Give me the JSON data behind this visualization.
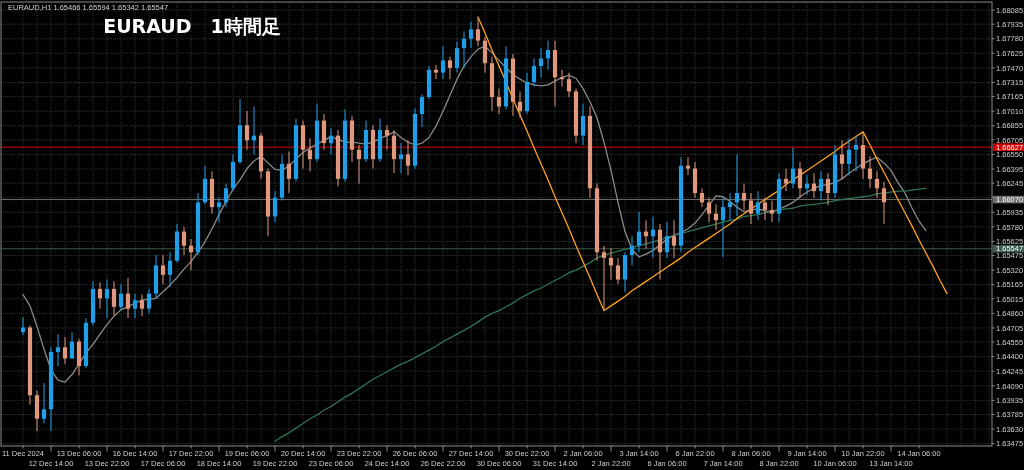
{
  "chart_data": {
    "type": "candlestick",
    "title": "EURAUD　1時間足",
    "subtitle": "EURAUD,H1 1.65466 1.65594 1.65342 1.65547",
    "categories": [
      "11 Dec 2024",
      null,
      null,
      null,
      "12 Dec 14:00",
      null,
      null,
      null,
      "13 Dec 06:00",
      null,
      null,
      null,
      "13 Dec 22:00",
      null,
      null,
      null,
      "16 Dec 14:00",
      null,
      null,
      null,
      "17 Dec 06:00",
      null,
      null,
      null,
      "17 Dec 22:00",
      null,
      null,
      null,
      "18 Dec 14:00",
      null,
      null,
      null,
      "19 Dec 06:00",
      null,
      null,
      null,
      "19 Dec 22:00",
      null,
      null,
      null,
      "20 Dec 14:00",
      null,
      null,
      null,
      "23 Dec 06:00",
      null,
      null,
      null,
      "23 Dec 22:00",
      null,
      null,
      null,
      "24 Dec 14:00",
      null,
      null,
      null,
      "26 Dec 06:00",
      null,
      null,
      null,
      "26 Dec 22:00",
      null,
      null,
      null,
      "27 Dec 14:00",
      null,
      null,
      null,
      "30 Dec 06:00",
      null,
      null,
      null,
      "30 Dec 22:00",
      null,
      null,
      null,
      "31 Dec 14:00",
      null,
      null,
      null,
      "2 Jan 06:00",
      null,
      null,
      null,
      "2 Jan 22:00",
      null,
      null,
      null,
      "3 Jan 14:00",
      null,
      null,
      null,
      "6 Jan 06:00",
      null,
      null,
      null,
      "6 Jan 22:00",
      null,
      null,
      null,
      "7 Jan 14:00",
      null,
      null,
      null,
      "8 Jan 06:00",
      null,
      null,
      null,
      "8 Jan 22:00",
      null,
      null,
      null,
      "9 Jan 14:00",
      null,
      null,
      null,
      "10 Jan 06:00",
      null,
      null,
      null,
      "10 Jan 22:00",
      null,
      null,
      null,
      "13 Jan 14:00",
      null,
      null,
      null,
      "14 Jan 06:00",
      null,
      null,
      null,
      null,
      null,
      null,
      null,
      null,
      null,
      null
    ],
    "ohlc": [
      [
        1.6466,
        1.6482,
        1.6463,
        1.6471
      ],
      [
        1.6471,
        1.6473,
        1.6389,
        1.6399
      ],
      [
        1.6399,
        1.6404,
        1.6361,
        1.6374
      ],
      [
        1.6374,
        1.6412,
        1.6369,
        1.6384
      ],
      [
        1.6384,
        1.645,
        1.6361,
        1.6445
      ],
      [
        1.6445,
        1.6464,
        1.643,
        1.645
      ],
      [
        1.645,
        1.6461,
        1.6432,
        1.6438
      ],
      [
        1.6438,
        1.6466,
        1.6438,
        1.6456
      ],
      [
        1.6456,
        1.6459,
        1.642,
        1.643
      ],
      [
        1.643,
        1.6481,
        1.6428,
        1.6476
      ],
      [
        1.6476,
        1.652,
        1.6473,
        1.6512
      ],
      [
        1.6512,
        1.6519,
        1.6491,
        1.6502
      ],
      [
        1.6502,
        1.6522,
        1.6481,
        1.6512
      ],
      [
        1.6512,
        1.652,
        1.6484,
        1.6493
      ],
      [
        1.6493,
        1.6517,
        1.6489,
        1.6507
      ],
      [
        1.6507,
        1.6524,
        1.6481,
        1.6491
      ],
      [
        1.6491,
        1.6507,
        1.6481,
        1.65
      ],
      [
        1.65,
        1.6506,
        1.6483,
        1.6491
      ],
      [
        1.6491,
        1.6512,
        1.6486,
        1.6507
      ],
      [
        1.6507,
        1.6548,
        1.6502,
        1.6537
      ],
      [
        1.6537,
        1.6548,
        1.6517,
        1.6527
      ],
      [
        1.6527,
        1.6551,
        1.6514,
        1.6542
      ],
      [
        1.6542,
        1.6581,
        1.654,
        1.6573
      ],
      [
        1.6573,
        1.6578,
        1.6548,
        1.6558
      ],
      [
        1.6558,
        1.6565,
        1.6532,
        1.6551
      ],
      [
        1.6551,
        1.6614,
        1.6548,
        1.6604
      ],
      [
        1.6604,
        1.6643,
        1.6602,
        1.6629
      ],
      [
        1.6629,
        1.6637,
        1.6592,
        1.6599
      ],
      [
        1.6599,
        1.6609,
        1.6583,
        1.6604
      ],
      [
        1.6604,
        1.6624,
        1.6599,
        1.6619
      ],
      [
        1.6619,
        1.6655,
        1.6616,
        1.6647
      ],
      [
        1.6647,
        1.6714,
        1.6645,
        1.6686
      ],
      [
        1.6686,
        1.6701,
        1.666,
        1.667
      ],
      [
        1.667,
        1.6706,
        1.6655,
        1.6675
      ],
      [
        1.6675,
        1.6678,
        1.6629,
        1.6637
      ],
      [
        1.6637,
        1.664,
        1.6568,
        1.6589
      ],
      [
        1.6589,
        1.6616,
        1.6583,
        1.6609
      ],
      [
        1.6609,
        1.6655,
        1.6606,
        1.6645
      ],
      [
        1.6645,
        1.6658,
        1.6614,
        1.6629
      ],
      [
        1.6629,
        1.6693,
        1.6626,
        1.6686
      ],
      [
        1.6686,
        1.6691,
        1.664,
        1.666
      ],
      [
        1.666,
        1.6672,
        1.6637,
        1.665
      ],
      [
        1.665,
        1.6709,
        1.6647,
        1.6691
      ],
      [
        1.6691,
        1.6698,
        1.666,
        1.6667
      ],
      [
        1.6667,
        1.6683,
        1.6655,
        1.6675
      ],
      [
        1.6675,
        1.6681,
        1.6621,
        1.6629
      ],
      [
        1.6629,
        1.6703,
        1.6626,
        1.6691
      ],
      [
        1.6691,
        1.6696,
        1.6647,
        1.666
      ],
      [
        1.666,
        1.6665,
        1.6624,
        1.665
      ],
      [
        1.665,
        1.6691,
        1.6647,
        1.6681
      ],
      [
        1.6681,
        1.6686,
        1.664,
        1.665
      ],
      [
        1.665,
        1.6693,
        1.6647,
        1.6681
      ],
      [
        1.6681,
        1.6686,
        1.666,
        1.6675
      ],
      [
        1.6675,
        1.6681,
        1.6635,
        1.665
      ],
      [
        1.665,
        1.6667,
        1.6635,
        1.6655
      ],
      [
        1.6655,
        1.667,
        1.6633,
        1.6643
      ],
      [
        1.6643,
        1.6704,
        1.664,
        1.6698
      ],
      [
        1.6698,
        1.6719,
        1.6684,
        1.6716
      ],
      [
        1.6716,
        1.6749,
        1.6714,
        1.6745
      ],
      [
        1.6745,
        1.675,
        1.6735,
        1.6742
      ],
      [
        1.6742,
        1.677,
        1.6735,
        1.6755
      ],
      [
        1.6755,
        1.6759,
        1.6735,
        1.6747
      ],
      [
        1.6747,
        1.6775,
        1.6742,
        1.6768
      ],
      [
        1.6768,
        1.6786,
        1.6747,
        1.6778
      ],
      [
        1.6778,
        1.6796,
        1.6768,
        1.6788
      ],
      [
        1.6788,
        1.6801,
        1.677,
        1.6776
      ],
      [
        1.6776,
        1.678,
        1.6742,
        1.6752
      ],
      [
        1.6752,
        1.6759,
        1.6701,
        1.6716
      ],
      [
        1.6716,
        1.6725,
        1.6698,
        1.6706
      ],
      [
        1.6706,
        1.677,
        1.6703,
        1.6757
      ],
      [
        1.6757,
        1.6762,
        1.6696,
        1.6711
      ],
      [
        1.6711,
        1.6722,
        1.6694,
        1.6701
      ],
      [
        1.6701,
        1.6742,
        1.6698,
        1.6732
      ],
      [
        1.6732,
        1.6757,
        1.6727,
        1.6749
      ],
      [
        1.6749,
        1.6768,
        1.6737,
        1.6757
      ],
      [
        1.6757,
        1.6776,
        1.6745,
        1.6766
      ],
      [
        1.6766,
        1.6776,
        1.6706,
        1.6737
      ],
      [
        1.6737,
        1.6745,
        1.6727,
        1.6735
      ],
      [
        1.6735,
        1.6742,
        1.6716,
        1.6722
      ],
      [
        1.6722,
        1.6725,
        1.6667,
        1.6675
      ],
      [
        1.6675,
        1.6709,
        1.6665,
        1.6696
      ],
      [
        1.6696,
        1.6706,
        1.6609,
        1.6619
      ],
      [
        1.6619,
        1.6624,
        1.6542,
        1.6551
      ],
      [
        1.6551,
        1.6558,
        1.6489,
        1.6545
      ],
      [
        1.6545,
        1.6555,
        1.6522,
        1.6537
      ],
      [
        1.6537,
        1.6545,
        1.6517,
        1.6522
      ],
      [
        1.6522,
        1.6551,
        1.6509,
        1.6548
      ],
      [
        1.6548,
        1.6568,
        1.6537,
        1.6558
      ],
      [
        1.6558,
        1.6594,
        1.6551,
        1.6573
      ],
      [
        1.6573,
        1.6585,
        1.6555,
        1.6568
      ],
      [
        1.6568,
        1.6589,
        1.6545,
        1.6575
      ],
      [
        1.6575,
        1.6581,
        1.6522,
        1.6551
      ],
      [
        1.6551,
        1.6583,
        1.6545,
        1.6568
      ],
      [
        1.6568,
        1.6585,
        1.6545,
        1.6558
      ],
      [
        1.6558,
        1.6652,
        1.6551,
        1.6643
      ],
      [
        1.6643,
        1.6652,
        1.6633,
        1.664
      ],
      [
        1.664,
        1.6647,
        1.6609,
        1.6614
      ],
      [
        1.6614,
        1.6619,
        1.6599,
        1.6604
      ],
      [
        1.6604,
        1.6609,
        1.6583,
        1.6592
      ],
      [
        1.6592,
        1.6602,
        1.6575,
        1.6585
      ],
      [
        1.6585,
        1.6609,
        1.6546,
        1.6599
      ],
      [
        1.6599,
        1.6614,
        1.6585,
        1.6604
      ],
      [
        1.6604,
        1.6655,
        1.6589,
        1.6614
      ],
      [
        1.6614,
        1.6624,
        1.6596,
        1.6606
      ],
      [
        1.6606,
        1.6614,
        1.6581,
        1.6592
      ],
      [
        1.6592,
        1.6616,
        1.6585,
        1.6604
      ],
      [
        1.6604,
        1.6609,
        1.6585,
        1.6596
      ],
      [
        1.6596,
        1.6606,
        1.6583,
        1.6592
      ],
      [
        1.6592,
        1.6635,
        1.6583,
        1.6629
      ],
      [
        1.6629,
        1.664,
        1.6616,
        1.6624
      ],
      [
        1.6624,
        1.6662,
        1.6619,
        1.664
      ],
      [
        1.664,
        1.6647,
        1.6609,
        1.6619
      ],
      [
        1.6619,
        1.6633,
        1.6612,
        1.6624
      ],
      [
        1.6624,
        1.6635,
        1.6609,
        1.6616
      ],
      [
        1.6616,
        1.6637,
        1.6606,
        1.6629
      ],
      [
        1.6629,
        1.6635,
        1.6601,
        1.6614
      ],
      [
        1.6614,
        1.6665,
        1.6609,
        1.6655
      ],
      [
        1.6655,
        1.667,
        1.6629,
        1.6645
      ],
      [
        1.6645,
        1.6672,
        1.6633,
        1.666
      ],
      [
        1.666,
        1.6675,
        1.6637,
        1.6665
      ],
      [
        1.6665,
        1.6679,
        1.6629,
        1.664
      ],
      [
        1.664,
        1.6653,
        1.6619,
        1.6629
      ],
      [
        1.6629,
        1.6637,
        1.6609,
        1.6619
      ],
      [
        1.6619,
        1.6626,
        1.6581,
        1.6604
      ],
      null,
      null,
      null,
      null,
      null,
      null,
      null,
      null,
      null,
      null,
      null,
      null,
      null,
      null,
      null
    ],
    "colors": [
      "#1e9fe8",
      "#e0997c",
      "#e0997c",
      "#1e9fe8",
      "#1e9fe8",
      "#1e9fe8",
      "#e0997c",
      "#1e9fe8",
      "#e0997c",
      "#1e9fe8",
      "#1e9fe8",
      "#e0997c",
      "#1e9fe8",
      "#e0997c",
      "#1e9fe8",
      "#e0997c",
      "#1e9fe8",
      "#e0997c",
      "#1e9fe8",
      "#1e9fe8",
      "#e0997c",
      "#1e9fe8",
      "#1e9fe8",
      "#e0997c",
      "#e0997c",
      "#1e9fe8",
      "#1e9fe8",
      "#e0997c",
      "#1e9fe8",
      "#1e9fe8",
      "#1e9fe8",
      "#1e9fe8",
      "#e0997c",
      "#1e9fe8",
      "#e0997c",
      "#e0997c",
      "#1e9fe8",
      "#1e9fe8",
      "#e0997c",
      "#1e9fe8",
      "#e0997c",
      "#e0997c",
      "#1e9fe8",
      "#e0997c",
      "#1e9fe8",
      "#e0997c",
      "#1e9fe8",
      "#e0997c",
      "#e0997c",
      "#1e9fe8",
      "#e0997c",
      "#1e9fe8",
      "#e0997c",
      "#e0997c",
      "#1e9fe8",
      "#e0997c",
      "#1e9fe8",
      "#1e9fe8",
      "#1e9fe8",
      "#e0997c",
      "#1e9fe8",
      "#e0997c",
      "#1e9fe8",
      "#1e9fe8",
      "#1e9fe8",
      "#e0997c",
      "#e0997c",
      "#e0997c",
      "#e0997c",
      "#1e9fe8",
      "#e0997c",
      "#e0997c",
      "#1e9fe8",
      "#1e9fe8",
      "#1e9fe8",
      "#1e9fe8",
      "#e0997c",
      "#e0997c",
      "#e0997c",
      "#e0997c",
      "#1e9fe8",
      "#e0997c",
      "#e0997c",
      "#e0997c",
      "#e0997c",
      "#e0997c",
      "#1e9fe8",
      "#1e9fe8",
      "#1e9fe8",
      "#e0997c",
      "#1e9fe8",
      "#e0997c",
      "#1e9fe8",
      "#e0997c",
      "#1e9fe8",
      "#e0997c",
      "#e0997c",
      "#e0997c",
      "#e0997c",
      "#e0997c",
      "#1e9fe8",
      "#1e9fe8",
      "#1e9fe8",
      "#e0997c",
      "#e0997c",
      "#1e9fe8",
      "#e0997c",
      "#e0997c",
      "#1e9fe8",
      "#e0997c",
      "#1e9fe8",
      "#e0997c",
      "#1e9fe8",
      "#e0997c",
      "#1e9fe8",
      "#e0997c",
      "#1e9fe8",
      "#e0997c",
      "#1e9fe8",
      "#1e9fe8",
      "#e0997c",
      "#e0997c",
      "#e0997c",
      "#e0997c",
      null,
      null,
      null,
      null,
      null,
      null,
      null,
      null,
      null,
      null,
      null,
      null,
      null,
      null,
      null
    ],
    "series": [
      {
        "type": "line",
        "color": "#8a8a8a",
        "values": [
          1.6506,
          1.6494,
          1.6472,
          1.6448,
          1.6426,
          1.6415,
          1.6413,
          1.6421,
          1.6432,
          1.6444,
          1.6453,
          1.6464,
          1.6474,
          1.6483,
          1.649,
          1.6493,
          1.6497,
          1.65,
          1.6501,
          1.6502,
          1.6509,
          1.6516,
          1.6524,
          1.6533,
          1.6541,
          1.6551,
          1.6562,
          1.6576,
          1.6591,
          1.6605,
          1.6618,
          1.6628,
          1.664,
          1.6648,
          1.6653,
          1.6646,
          1.6639,
          1.6638,
          1.6643,
          1.665,
          1.6657,
          1.6662,
          1.6666,
          1.667,
          1.6674,
          1.6671,
          1.6668,
          1.6668,
          1.6667,
          1.6666,
          1.6668,
          1.6672,
          1.6675,
          1.6679,
          1.6673,
          1.6668,
          1.6665,
          1.6667,
          1.6673,
          1.6685,
          1.6701,
          1.6718,
          1.6735,
          1.6749,
          1.6759,
          1.6767,
          1.677,
          1.6763,
          1.6755,
          1.6747,
          1.674,
          1.6735,
          1.6731,
          1.6729,
          1.6728,
          1.6729,
          1.6733,
          1.6737,
          1.6739,
          1.6736,
          1.6725,
          1.6711,
          1.6694,
          1.6668,
          1.6638,
          1.6604,
          1.6573,
          1.6554,
          1.6546,
          1.6549,
          1.6553,
          1.6559,
          1.6565,
          1.6569,
          1.6572,
          1.6576,
          1.6582,
          1.6591,
          1.6601,
          1.6611,
          1.661,
          1.6605,
          1.6599,
          1.6594,
          1.6596,
          1.6597,
          1.6595,
          1.6594,
          1.6597,
          1.66,
          1.6604,
          1.661,
          1.6615,
          1.6619,
          1.6622,
          1.6623,
          1.6625,
          1.6629,
          1.6635,
          1.664,
          1.6645,
          1.6649,
          1.6652,
          1.6646,
          1.6638,
          1.6625,
          1.6614,
          1.6598,
          1.6584,
          1.6574,
          null,
          null,
          null,
          null,
          null,
          null,
          null,
          null,
          null
        ]
      },
      {
        "type": "line",
        "color": "#2f7352",
        "values": [
          null,
          null,
          null,
          null,
          null,
          null,
          null,
          null,
          null,
          null,
          null,
          null,
          null,
          null,
          null,
          null,
          null,
          null,
          null,
          null,
          null,
          null,
          null,
          null,
          null,
          null,
          null,
          null,
          null,
          null,
          null,
          null,
          null,
          null,
          null,
          null,
          1.635,
          1.6355,
          1.6359,
          1.6364,
          1.6369,
          1.6374,
          1.6378,
          1.6383,
          1.6387,
          1.6392,
          1.6397,
          1.6401,
          1.6406,
          1.6411,
          1.6416,
          1.642,
          1.6424,
          1.6428,
          1.6432,
          1.6435,
          1.6439,
          1.6443,
          1.6447,
          1.6451,
          1.6456,
          1.646,
          1.6464,
          1.6468,
          1.6472,
          1.6477,
          1.6482,
          1.6486,
          1.6489,
          1.6493,
          1.6497,
          1.6502,
          1.6506,
          1.651,
          1.6513,
          1.6517,
          1.6521,
          1.6525,
          1.6529,
          1.6532,
          1.6536,
          1.654,
          1.6545,
          1.6548,
          1.655,
          1.6552,
          1.6554,
          1.6556,
          1.6558,
          1.656,
          1.6562,
          1.6564,
          1.6567,
          1.6569,
          1.6571,
          1.6573,
          1.6575,
          1.6577,
          1.6579,
          1.6581,
          1.6583,
          1.6585,
          1.6586,
          1.6589,
          1.659,
          1.6591,
          1.6593,
          1.6594,
          1.6596,
          1.6597,
          1.6598,
          1.66,
          1.6601,
          1.6602,
          1.6603,
          1.6604,
          1.6606,
          1.6607,
          1.6608,
          1.6609,
          1.661,
          1.6611,
          1.6613,
          1.6614,
          1.6615,
          1.6616,
          1.6616,
          1.6617,
          1.6618,
          1.6619,
          null,
          null,
          null,
          null,
          null,
          null,
          null,
          null,
          null
        ]
      },
      {
        "type": "line",
        "color": "#ffa21f",
        "values": [
          null,
          null,
          null,
          null,
          null,
          null,
          null,
          null,
          null,
          null,
          null,
          null,
          null,
          null,
          null,
          null,
          null,
          null,
          null,
          null,
          null,
          null,
          null,
          null,
          null,
          null,
          null,
          null,
          null,
          null,
          null,
          null,
          null,
          null,
          null,
          null,
          null,
          null,
          null,
          null,
          null,
          null,
          null,
          null,
          null,
          null,
          null,
          null,
          null,
          null,
          null,
          null,
          null,
          null,
          null,
          null,
          null,
          null,
          null,
          null,
          null,
          null,
          null,
          null,
          null,
          1.6801,
          1.6784,
          1.6766,
          1.6749,
          1.6732,
          1.6714,
          1.6697,
          1.668,
          1.6662,
          1.6645,
          1.6628,
          1.661,
          1.6593,
          1.6576,
          1.6558,
          1.6541,
          1.6524,
          1.6506,
          1.6489,
          1.6494,
          1.6499,
          1.6504,
          1.651,
          1.6515,
          1.652,
          1.6525,
          1.653,
          1.6535,
          1.654,
          1.6545,
          1.6551,
          1.6556,
          1.6561,
          1.6566,
          1.6571,
          1.6576,
          1.6581,
          1.6587,
          1.6592,
          1.6597,
          1.6602,
          1.6607,
          1.6612,
          1.6617,
          1.6623,
          1.6628,
          1.6633,
          1.6638,
          1.6643,
          1.6648,
          1.6653,
          1.6658,
          1.6664,
          1.6669,
          1.6674,
          1.6679,
          1.6665,
          1.665,
          1.6636,
          1.6622,
          1.6607,
          1.6593,
          1.6579,
          1.6564,
          1.655,
          1.6536,
          1.6521,
          1.6507,
          null,
          null,
          null,
          null,
          null,
          null
        ]
      }
    ],
    "ylim": [
      1.6345,
      1.6816
    ],
    "yticks": [
      1.68085,
      1.67935,
      {
        "value": 1.6778,
        "label": "1.67780"
      },
      1.67625,
      {
        "value": 1.6747,
        "label": "1.67470"
      },
      1.67315,
      1.67165,
      {
        "value": 1.6701,
        "label": "1.67010"
      },
      1.66855,
      1.66705,
      {
        "value": 1.6655,
        "label": "1.66550"
      },
      1.66395,
      1.66245,
      {
        "value": 1.6609,
        "label": null
      },
      1.65935,
      {
        "value": 1.6578,
        "label": "1.65780"
      },
      1.65625,
      1.65475,
      {
        "value": 1.6532,
        "label": "1.65320"
      },
      1.65165,
      1.65015,
      {
        "value": 1.6486,
        "label": "1.64860"
      },
      1.64705,
      1.64555,
      {
        "value": 1.644,
        "label": "1.64400"
      },
      1.64245,
      {
        "value": 1.6409,
        "label": "1.64090"
      },
      1.63935,
      1.63785,
      {
        "value": 1.6363,
        "label": "1.63630"
      },
      1.63475
    ],
    "ref_lines": [
      {
        "axis": "y",
        "value": 1.66627,
        "label": "1.66627",
        "color": "#d40000"
      },
      {
        "axis": "y",
        "value": 1.6607,
        "label": "1.66070",
        "color": "#6e6e6e"
      },
      {
        "axis": "y",
        "value": 1.65547,
        "label": "1.65547",
        "color": "#3d5c4c"
      }
    ],
    "grid": true
  }
}
